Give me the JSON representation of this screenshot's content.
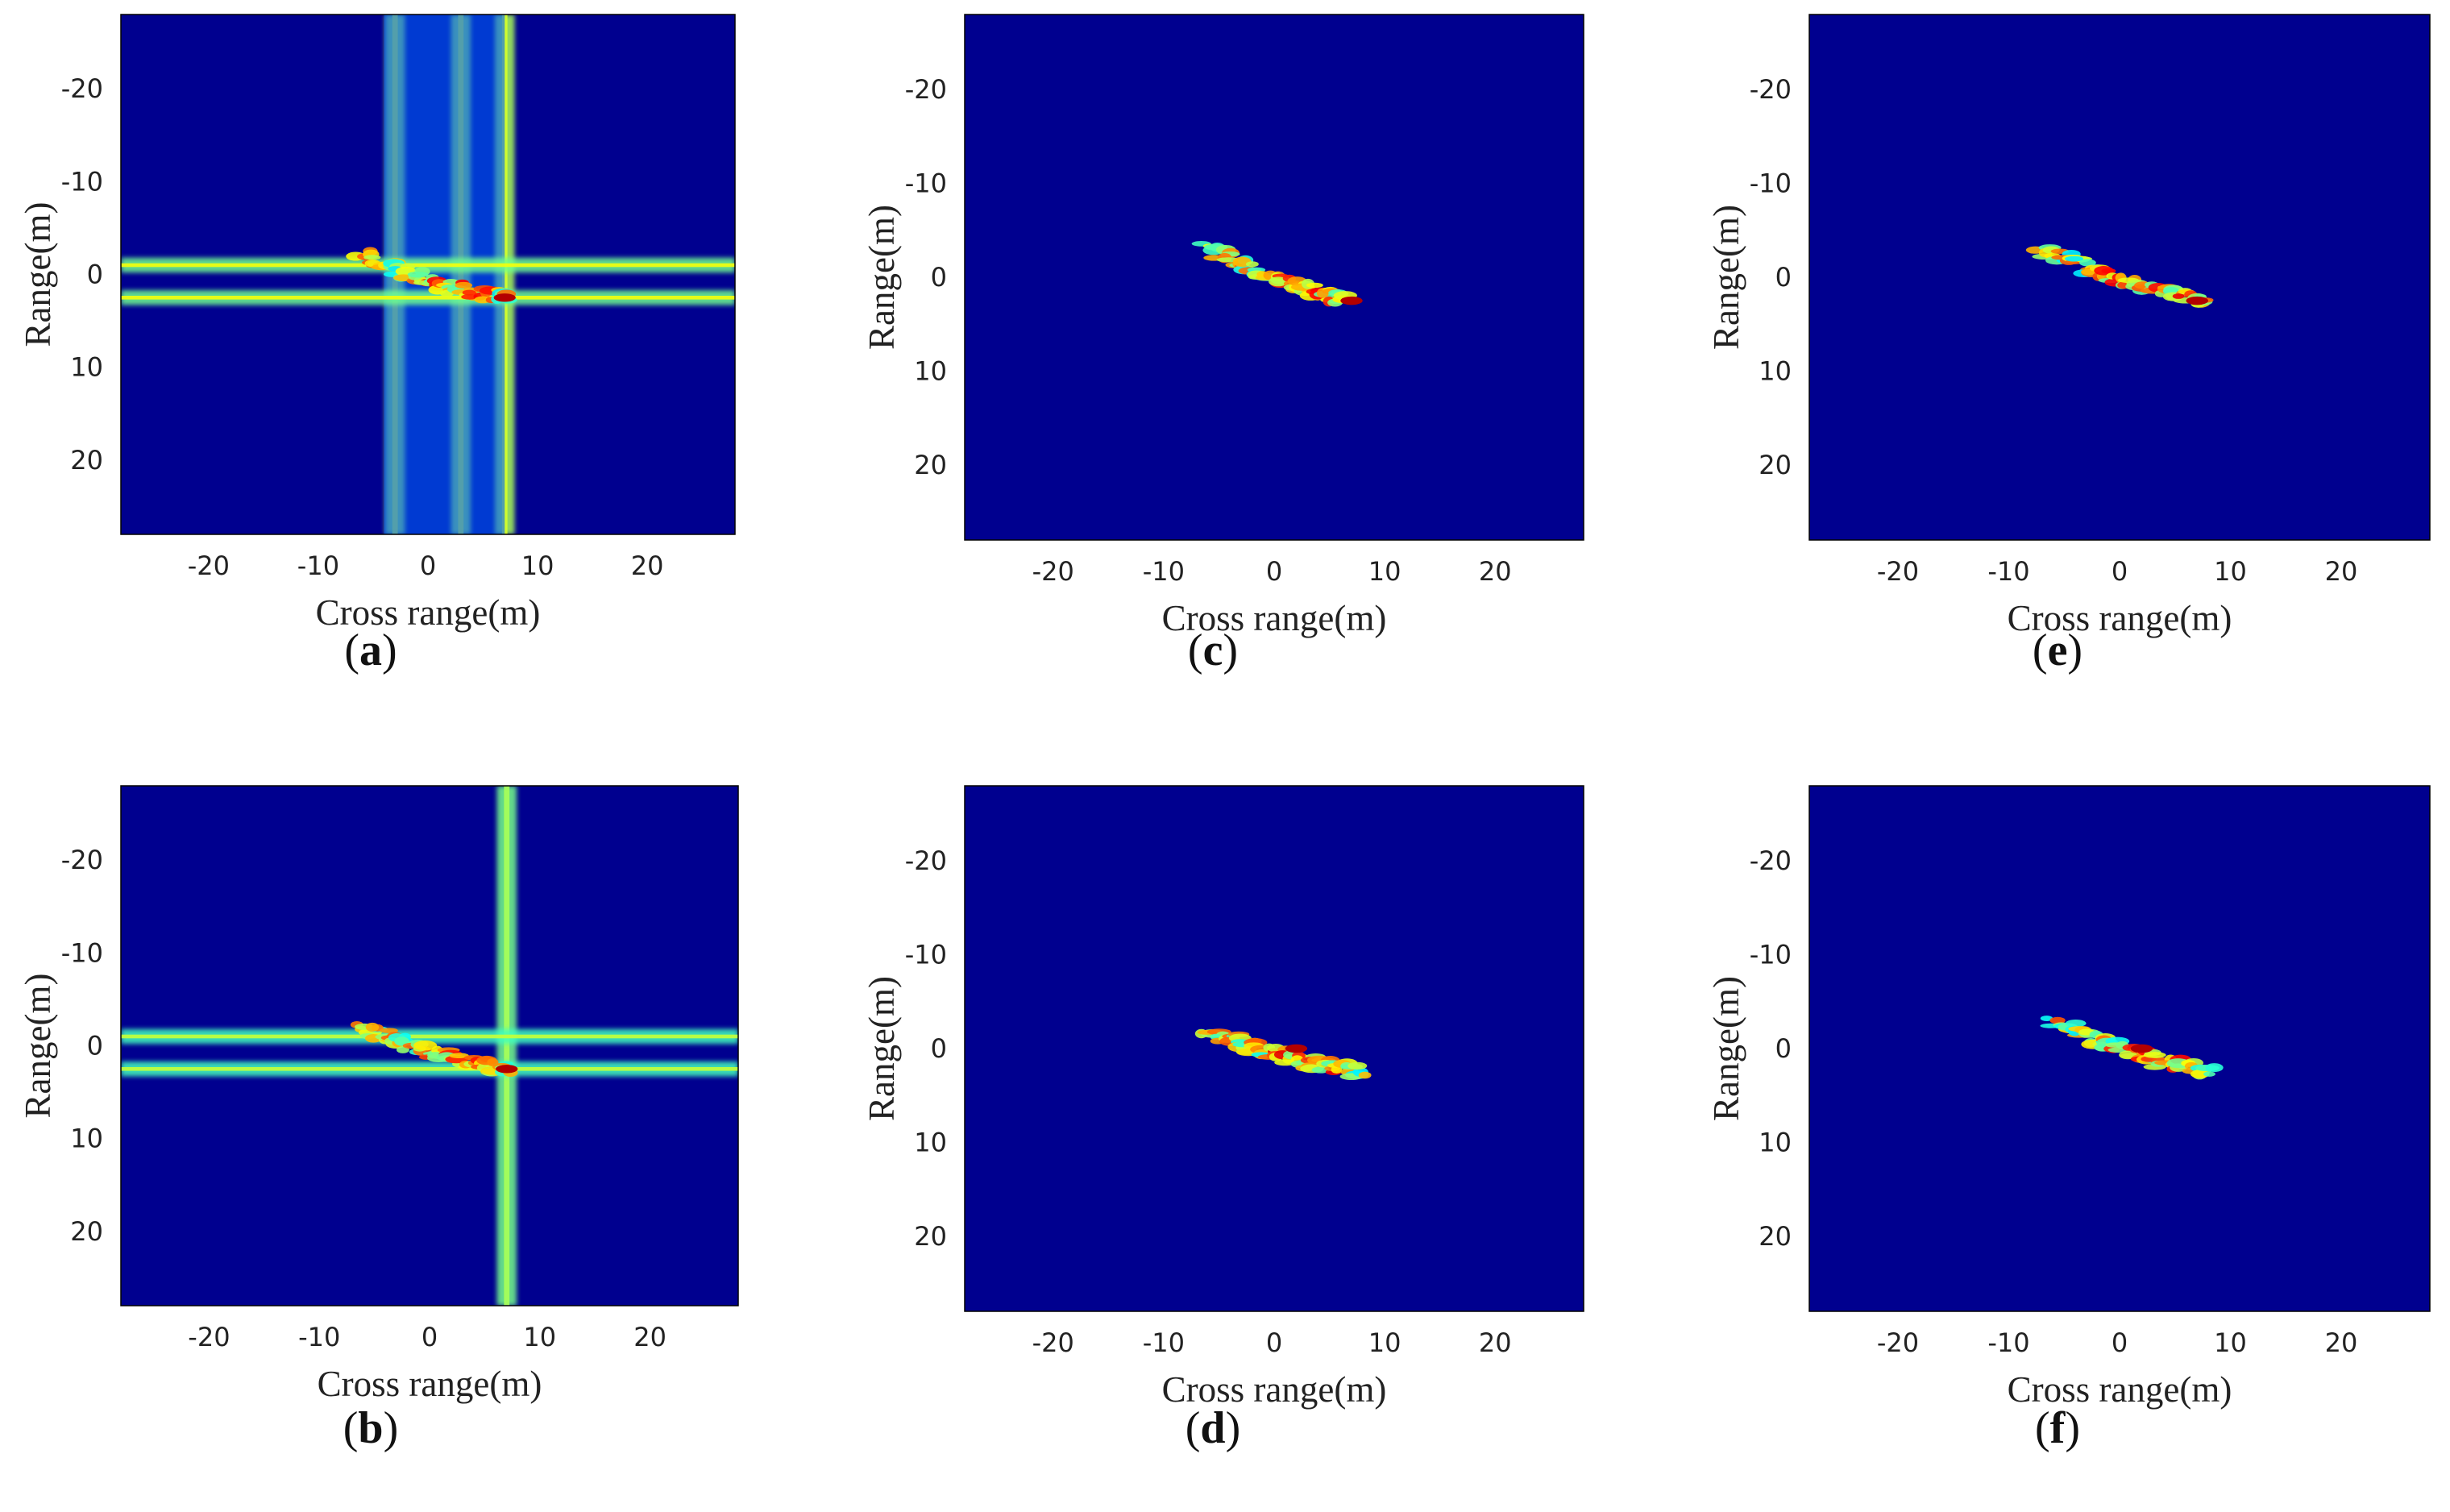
{
  "colors": {
    "background": "#00008f",
    "colormap": "jet",
    "frame": "#000000"
  },
  "chart_data": [
    {
      "type": "heatmap",
      "panel": "a",
      "caption": "a",
      "xlabel": "Cross range(m)",
      "ylabel": "Range(m)",
      "xlim": [
        -28,
        28
      ],
      "ylim": [
        -28,
        28
      ],
      "xticks": [
        "-20",
        "-10",
        "0",
        "10",
        "20"
      ],
      "yticks": [
        "-20",
        "-10",
        "0",
        "10",
        "20"
      ],
      "target": {
        "start": [
          -6,
          -2
        ],
        "end": [
          7,
          2.5
        ]
      },
      "peak": [
        7,
        2.5
      ],
      "sidelobes": {
        "vertical": [
          -3,
          3,
          7
        ],
        "horizontal": [
          -1,
          2.5
        ],
        "strength": 0.55
      },
      "noise": 0.08
    },
    {
      "type": "heatmap",
      "panel": "b",
      "caption": "b",
      "xlabel": "Cross range(m)",
      "ylabel": "Range(m)",
      "xlim": [
        -28,
        28
      ],
      "ylim": [
        -28,
        28
      ],
      "xticks": [
        "-20",
        "-10",
        "0",
        "10",
        "20"
      ],
      "yticks": [
        "-20",
        "-10",
        "0",
        "10",
        "20"
      ],
      "target": {
        "start": [
          -6,
          -2
        ],
        "end": [
          7,
          2.5
        ]
      },
      "peak": [
        7,
        2.5
      ],
      "sidelobes": {
        "vertical": [
          7
        ],
        "horizontal": [
          -1,
          2.5
        ],
        "strength": 0.4
      },
      "noise": 0.05
    },
    {
      "type": "heatmap",
      "panel": "c",
      "caption": "c",
      "xlabel": "Cross range(m)",
      "ylabel": "Range(m)",
      "xlim": [
        -28,
        28
      ],
      "ylim": [
        -28,
        28
      ],
      "xticks": [
        "-20",
        "-10",
        "0",
        "10",
        "20"
      ],
      "yticks": [
        "-20",
        "-10",
        "0",
        "10",
        "20"
      ],
      "target": {
        "start": [
          -6,
          -3
        ],
        "end": [
          7,
          2.5
        ]
      },
      "peak": [
        7,
        2.5
      ],
      "sidelobes": {
        "vertical": [],
        "horizontal": [],
        "strength": 0
      },
      "noise": 0
    },
    {
      "type": "heatmap",
      "panel": "d",
      "caption": "d",
      "xlabel": "Cross range(m)",
      "ylabel": "Range(m)",
      "xlim": [
        -28,
        28
      ],
      "ylim": [
        -28,
        28
      ],
      "xticks": [
        "-20",
        "-10",
        "0",
        "10",
        "20"
      ],
      "yticks": [
        "-20",
        "-10",
        "0",
        "10",
        "20"
      ],
      "target": {
        "start": [
          -6,
          -2
        ],
        "end": [
          8,
          2.5
        ]
      },
      "peak": [
        2,
        0
      ],
      "sidelobes": {
        "vertical": [],
        "horizontal": [],
        "strength": 0
      },
      "noise": 0
    },
    {
      "type": "heatmap",
      "panel": "e",
      "caption": "e",
      "xlabel": "Cross range(m)",
      "ylabel": "Range(m)",
      "xlim": [
        -28,
        28
      ],
      "ylim": [
        -28,
        28
      ],
      "xticks": [
        "-20",
        "-10",
        "0",
        "10",
        "20"
      ],
      "yticks": [
        "-20",
        "-10",
        "0",
        "10",
        "20"
      ],
      "target": {
        "start": [
          -7,
          -3
        ],
        "end": [
          8,
          2.5
        ]
      },
      "peak": [
        7,
        2.5
      ],
      "sidelobes": {
        "vertical": [],
        "horizontal": [],
        "strength": 0
      },
      "noise": 0
    },
    {
      "type": "heatmap",
      "panel": "f",
      "caption": "f",
      "xlabel": "Cross range(m)",
      "ylabel": "Range(m)",
      "xlim": [
        -28,
        28
      ],
      "ylim": [
        -28,
        28
      ],
      "xticks": [
        "-20",
        "-10",
        "0",
        "10",
        "20"
      ],
      "yticks": [
        "-20",
        "-10",
        "0",
        "10",
        "20"
      ],
      "target": {
        "start": [
          -6,
          -3
        ],
        "end": [
          8,
          2.5
        ]
      },
      "peak": [
        2,
        0
      ],
      "sidelobes": {
        "vertical": [],
        "horizontal": [],
        "strength": 0
      },
      "noise": 0
    }
  ]
}
